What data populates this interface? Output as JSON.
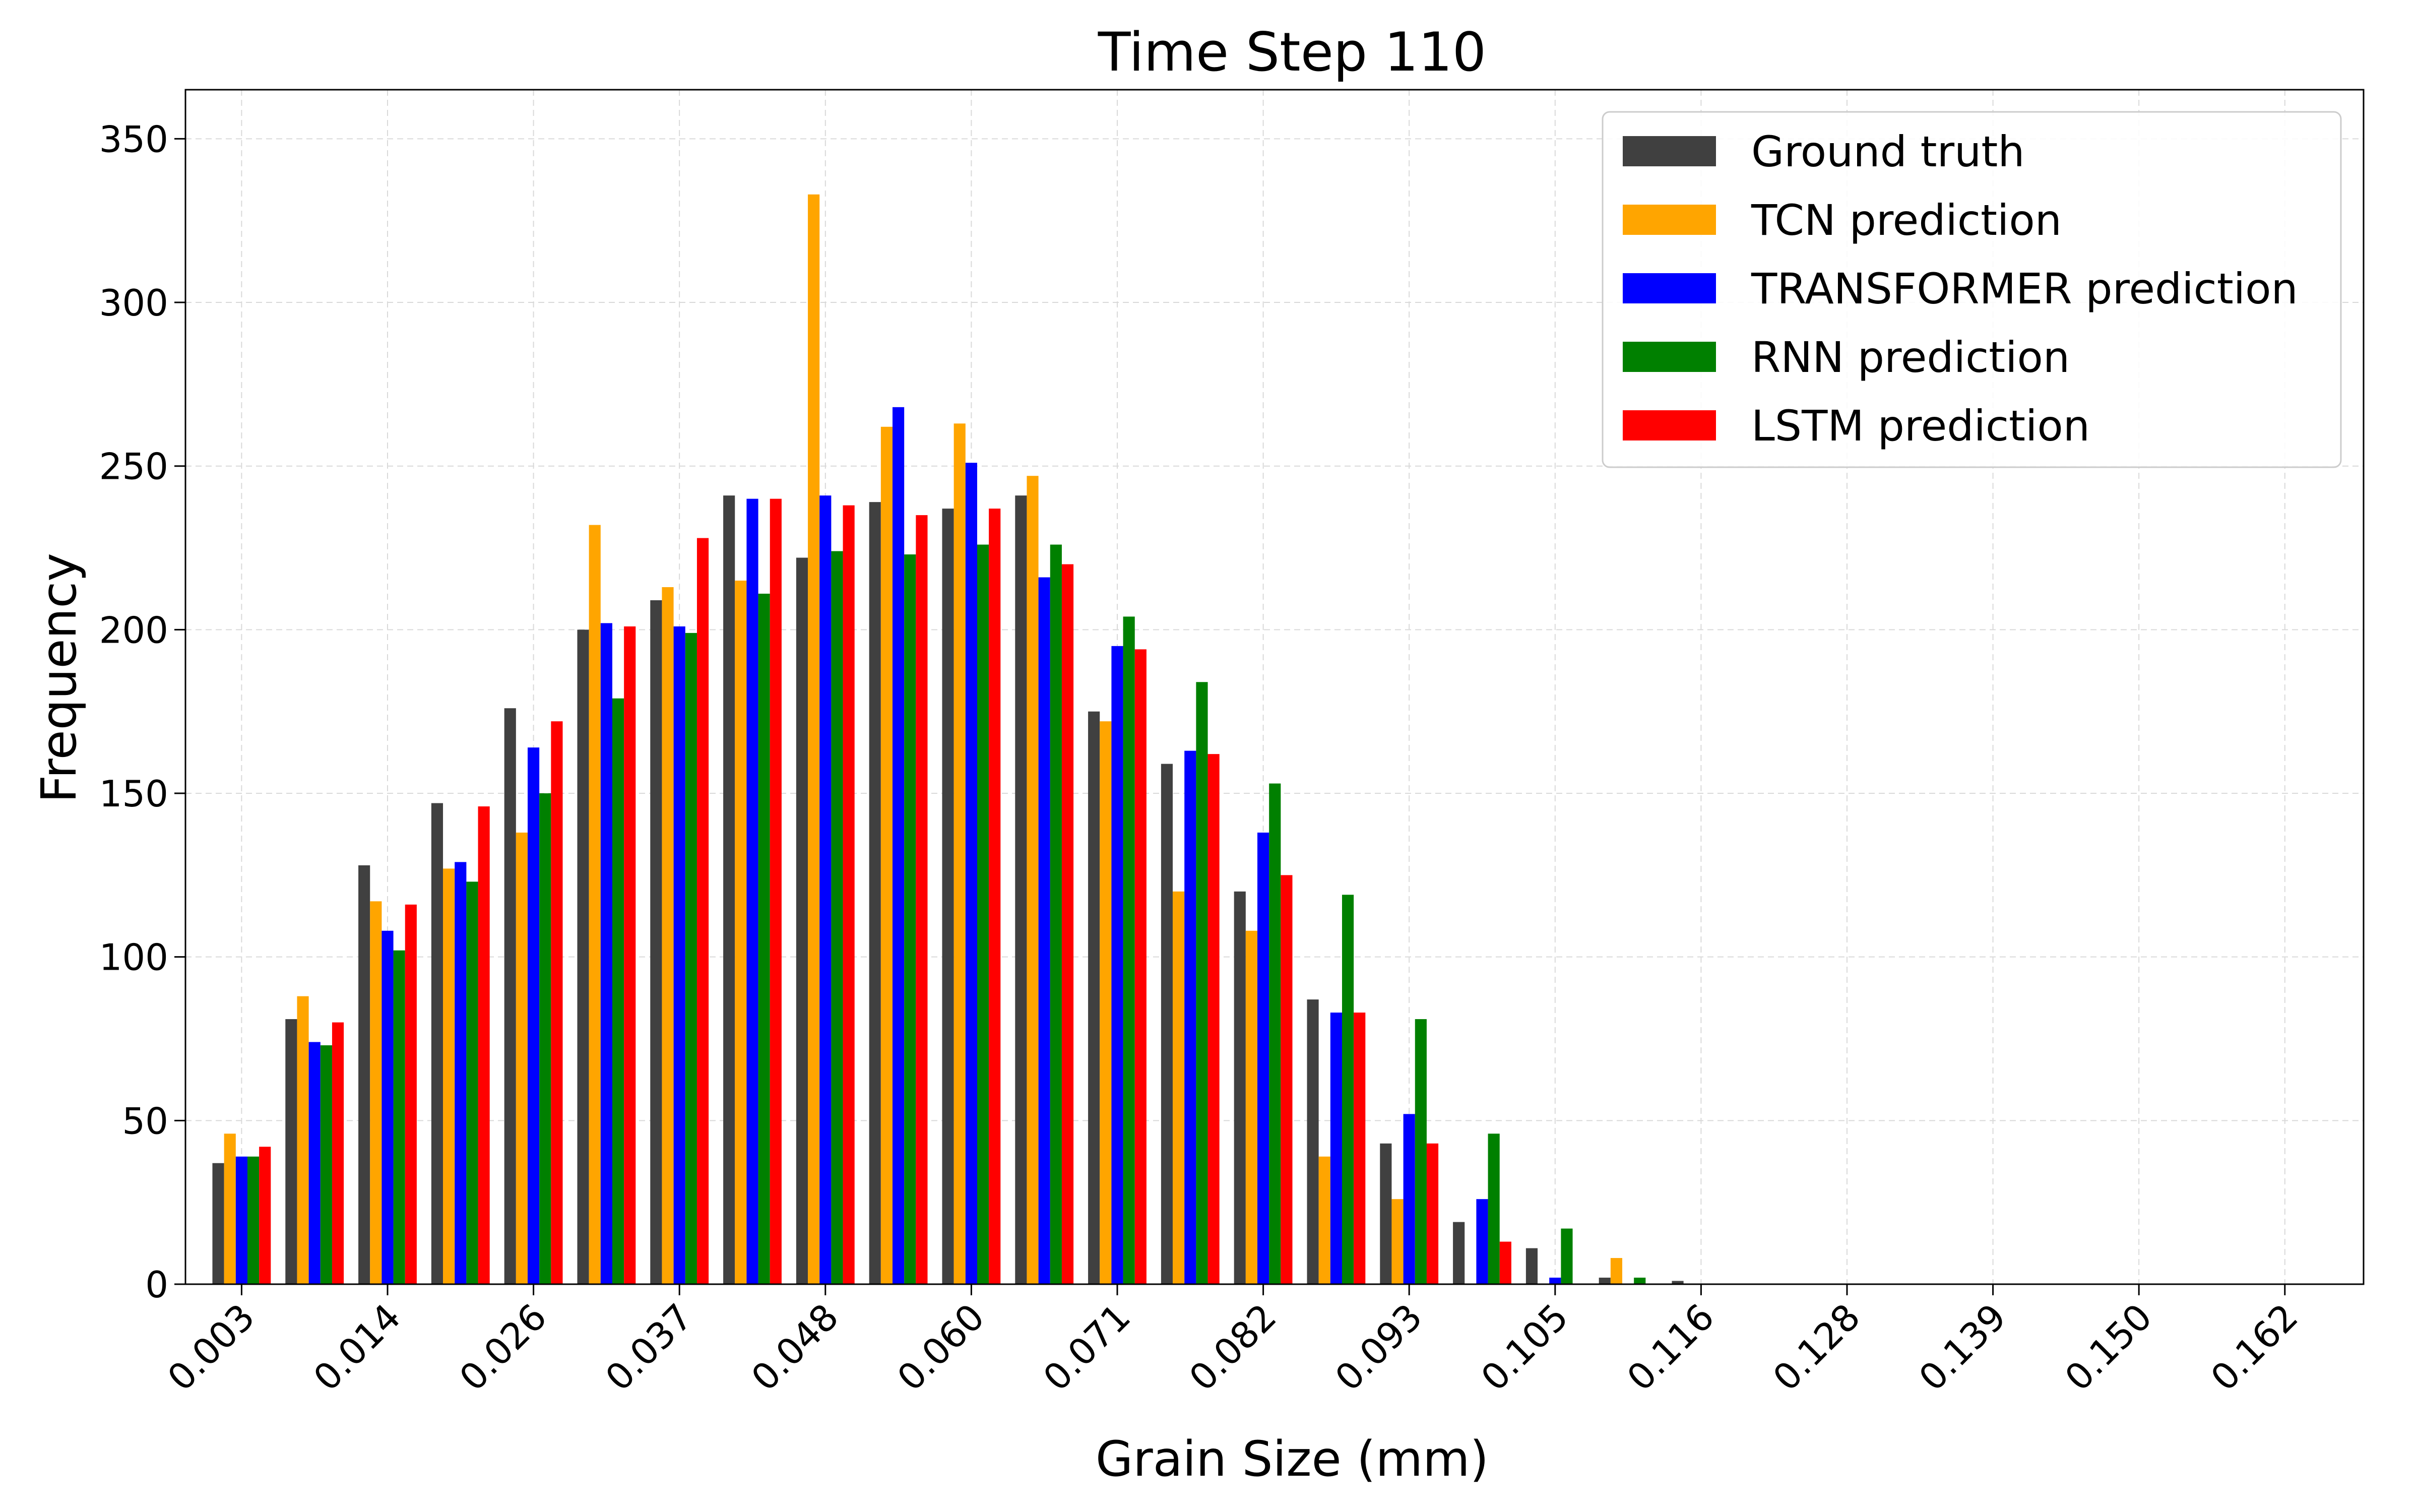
{
  "chart_data": {
    "type": "bar",
    "title": "Time Step 110",
    "xlabel": "Grain Size (mm)",
    "ylabel": "Frequency",
    "ylim": [
      0,
      365
    ],
    "grid": true,
    "legend_position": "top-right",
    "yticks": [
      "0",
      "50",
      "100",
      "150",
      "200",
      "250",
      "300",
      "350"
    ],
    "xticks": [
      "0.003",
      "0.014",
      "0.026",
      "0.037",
      "0.048",
      "0.060",
      "0.071",
      "0.082",
      "0.093",
      "0.105",
      "0.116",
      "0.128",
      "0.139",
      "0.150",
      "0.162"
    ],
    "bin_count": 30,
    "series": [
      {
        "name": "Ground truth",
        "color": "#404040",
        "values": [
          37,
          81,
          128,
          147,
          176,
          200,
          209,
          241,
          222,
          239,
          237,
          241,
          175,
          159,
          120,
          87,
          43,
          19,
          11,
          2,
          1,
          0,
          0,
          0,
          0,
          0,
          0,
          0,
          0,
          0
        ]
      },
      {
        "name": "TCN prediction",
        "color": "#ffa500",
        "values": [
          46,
          88,
          117,
          127,
          138,
          232,
          213,
          215,
          333,
          262,
          263,
          247,
          172,
          120,
          108,
          39,
          26,
          0,
          0,
          8,
          0,
          0,
          0,
          0,
          0,
          0,
          0,
          0,
          0,
          0
        ]
      },
      {
        "name": "TRANSFORMER prediction",
        "color": "#0000ff",
        "values": [
          39,
          74,
          108,
          129,
          164,
          202,
          201,
          240,
          241,
          268,
          251,
          216,
          195,
          163,
          138,
          83,
          52,
          26,
          2,
          0,
          0,
          0,
          0,
          0,
          0,
          0,
          0,
          0,
          0,
          0
        ]
      },
      {
        "name": "RNN prediction",
        "color": "#008000",
        "values": [
          39,
          73,
          102,
          123,
          150,
          179,
          199,
          211,
          224,
          223,
          226,
          226,
          204,
          184,
          153,
          119,
          81,
          46,
          17,
          2,
          0,
          0,
          0,
          0,
          0,
          0,
          0,
          0,
          0,
          0
        ]
      },
      {
        "name": "LSTM prediction",
        "color": "#ff0000",
        "values": [
          42,
          80,
          116,
          146,
          172,
          201,
          228,
          240,
          238,
          235,
          237,
          220,
          194,
          162,
          125,
          83,
          43,
          13,
          0,
          0,
          0,
          0,
          0,
          0,
          0,
          0,
          0,
          0,
          0,
          0
        ]
      }
    ]
  }
}
